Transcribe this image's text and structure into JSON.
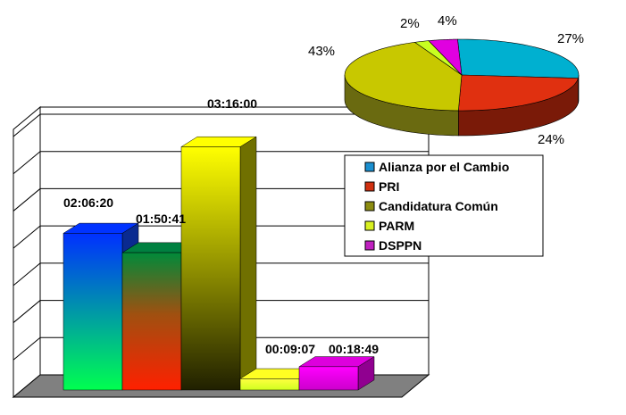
{
  "chart_data": [
    {
      "type": "bar",
      "categories": [
        "Alianza por el Cambio",
        "PRI",
        "Candidatura Común",
        "PARM",
        "DSPPN"
      ],
      "values_seconds": [
        7580,
        6641,
        11760,
        547,
        1129
      ],
      "data_labels": [
        "02:06:20",
        "01:50:41",
        "03:16:00",
        "00:09:07",
        "00:18:49"
      ],
      "ylim_seconds": [
        0,
        12600
      ],
      "grid": true,
      "style": "3d"
    },
    {
      "type": "pie",
      "labels": [
        "Alianza por el Cambio",
        "PRI",
        "Candidatura Común",
        "PARM",
        "DSPPN"
      ],
      "values": [
        27,
        24,
        43,
        2,
        4
      ],
      "value_labels": [
        "27%",
        "24%",
        "43%",
        "2%",
        "4%"
      ],
      "style": "3d",
      "legend_position": "right"
    }
  ],
  "legend": [
    {
      "label": "Alianza por el Cambio",
      "color": "#1a8fd0"
    },
    {
      "label": "PRI",
      "color": "#d03010"
    },
    {
      "label": "Candidatura Común",
      "color": "#8c8c10"
    },
    {
      "label": "PARM",
      "color": "#d8f020"
    },
    {
      "label": "DSPPN",
      "color": "#c020c0"
    }
  ],
  "colors": {
    "alianza_top": "#0033ff",
    "alianza_bottom": "#00ff55",
    "pri_top": "#008040",
    "pri_bottom": "#ff2200",
    "cc_top": "#ffff00",
    "cc_bottom": "#202000",
    "parm": "#ffff22",
    "dsppn": "#dd00dd",
    "floor": "#808080"
  }
}
